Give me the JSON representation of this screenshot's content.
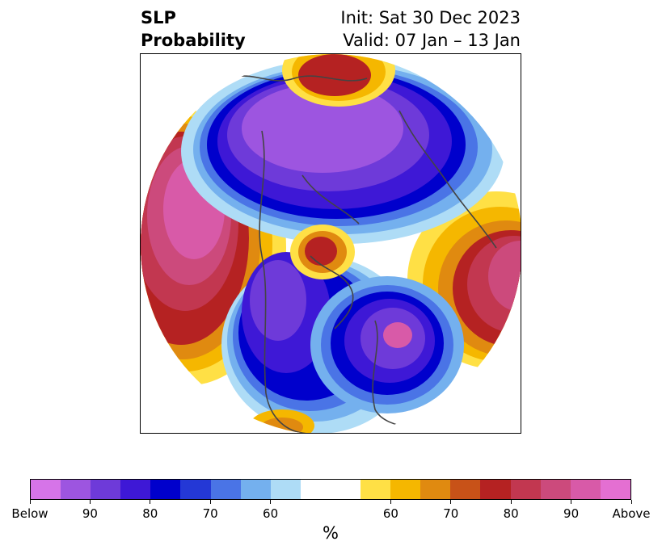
{
  "title": {
    "left_line1": "SLP",
    "left_line2": "Probability",
    "right_line1": "Init: Sat 30 Dec 2023",
    "right_line2": "Valid: 07 Jan – 13 Jan"
  },
  "colorbar": {
    "segments": [
      "#d674e8",
      "#9d55e0",
      "#6e3ad9",
      "#3e18d6",
      "#0000cc",
      "#2438d6",
      "#4a74e6",
      "#74b0ee",
      "#aedcf6",
      "#ffffff",
      "#ffe045",
      "#f5b700",
      "#e08a10",
      "#c85218",
      "#b52222",
      "#c23750",
      "#cc4a7c",
      "#d85aa8",
      "#e46fd2"
    ],
    "segment_units": [
      1,
      1,
      1,
      1,
      1,
      1,
      1,
      1,
      1,
      2,
      1,
      1,
      1,
      1,
      1,
      1,
      1,
      1,
      1
    ],
    "tick_labels": [
      "Below",
      "90",
      "80",
      "70",
      "60",
      "60",
      "70",
      "80",
      "90",
      "Above"
    ],
    "units_label": "%"
  },
  "map_colors": {
    "purple_deep": "#9d55e0",
    "purple": "#6e3ad9",
    "indigo": "#3e18d6",
    "blue": "#0000cc",
    "mid_blue": "#4a74e6",
    "light_blue": "#74b0ee",
    "pale_blue": "#aedcf6",
    "yellow": "#ffe045",
    "gold": "#f5b700",
    "orange": "#e08a10",
    "red": "#b52222",
    "rose": "#c23750",
    "pink": "#cc4a7c",
    "magenta": "#d85aa8",
    "coast": "#444444"
  }
}
